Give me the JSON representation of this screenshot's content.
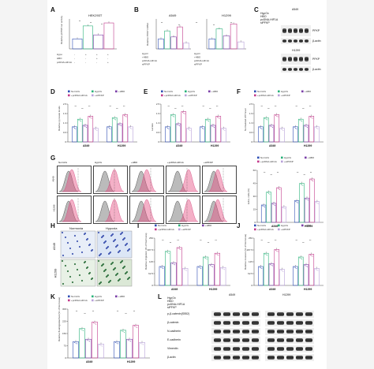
{
  "panels": {
    "A": {
      "label": "A",
      "title": "HEK293T",
      "ylabel": "Relative pFPKP-luc activity",
      "rows": [
        [
          "Hypo",
          "-",
          "+",
          "+",
          "+"
        ],
        [
          "HBO",
          "-",
          "-",
          "+",
          "-"
        ],
        [
          "pcDNA-HIF1A",
          "-",
          "-",
          "-",
          "+"
        ]
      ],
      "sig": [
        "**",
        "**",
        "**"
      ]
    },
    "B": {
      "label": "B",
      "title_left": "A549",
      "title_right": "H1299",
      "ylabel": "Relative PFKP mRNA",
      "rows": [
        "HypO",
        "+HBO",
        "pcDNA-HIF1A",
        "siPFKP"
      ],
      "sig": [
        "**",
        "**",
        "**",
        "**",
        "**"
      ]
    },
    "C": {
      "label": "C",
      "cell_a": "A549",
      "cell_b": "H1299",
      "rows": [
        "HypOx",
        "HBO",
        "pcDNA-HIF1A",
        "siPFKP"
      ],
      "bands": [
        "PFKP",
        "β-actin",
        "PFKP",
        "β-actin"
      ]
    },
    "D": {
      "label": "D",
      "ylabel": "Relative pyruvate levels",
      "groups": [
        "A549",
        "H1299"
      ]
    },
    "E": {
      "label": "E",
      "ylabel": "Lactate",
      "groups": [
        "A549",
        "H1299"
      ]
    },
    "F": {
      "label": "F",
      "ylabel": "Normalized ATP level",
      "groups": [
        "A549",
        "H1299"
      ]
    },
    "G": {
      "label": "G",
      "columns": [
        "NormOx",
        "HypOx",
        "+HBO",
        "+pcDNA-HIF1A",
        "+siPFKP"
      ],
      "rows": [
        "A549",
        "H1299"
      ],
      "bar_ylabel": "EdU+ cells (%)",
      "groups": [
        "A549",
        "H1299"
      ]
    },
    "H": {
      "label": "H",
      "columns": [
        "Normoxia",
        "Hypoxia"
      ],
      "rows": [
        "A549",
        "H1299"
      ]
    },
    "I": {
      "label": "I",
      "ylabel": "Relative migration (% of Normoxia)",
      "groups": [
        "A549",
        "H1299"
      ]
    },
    "J": {
      "label": "J",
      "ylabel": "Relative invasion (% of Normoxia)",
      "groups": [
        "A549",
        "H1299"
      ]
    },
    "K": {
      "label": "K",
      "ylabel": "Relative floating/attached (% of Normoxia)",
      "groups": [
        "A549",
        "H1299"
      ]
    },
    "L": {
      "label": "L",
      "cell_a": "A549",
      "cell_b": "H1299",
      "rows": [
        "HypOx",
        "HBO",
        "pcDNA-HIF1A",
        "siPFKP"
      ],
      "bands": [
        "p-β-catenin(S552)",
        "β-catenin",
        "N-cadherin",
        "E-cadherin",
        "Vimentin",
        "β-actin"
      ]
    }
  },
  "legend": {
    "items": [
      "NormOx",
      "HypOx",
      "+HBO",
      "+pcDNA-HIF1A",
      "+siPFKP"
    ],
    "colors": [
      "#2f4fb5",
      "#29b27a",
      "#7b3fa8",
      "#c23a8b",
      "#b8a1d9"
    ]
  },
  "chart_data": [
    {
      "type": "bar",
      "panel": "D",
      "categories": [
        "A549",
        "H1299"
      ],
      "series": [
        {
          "name": "NormOx",
          "values": [
            1.0,
            1.0
          ]
        },
        {
          "name": "HypOx",
          "values": [
            1.5,
            1.6
          ]
        },
        {
          "name": "+HBO",
          "values": [
            1.1,
            1.2
          ]
        },
        {
          "name": "+pcDNA-HIF1A",
          "values": [
            1.7,
            1.8
          ]
        },
        {
          "name": "+siPFKP",
          "values": [
            0.9,
            1.0
          ]
        }
      ],
      "ylim": [
        0,
        2.5
      ]
    },
    {
      "type": "bar",
      "panel": "E",
      "categories": [
        "A549",
        "H1299"
      ],
      "series": [
        {
          "name": "NormOx",
          "values": [
            1.0,
            1.0
          ]
        },
        {
          "name": "HypOx",
          "values": [
            1.8,
            1.5
          ]
        },
        {
          "name": "+HBO",
          "values": [
            1.2,
            1.1
          ]
        },
        {
          "name": "+pcDNA-HIF1A",
          "values": [
            2.0,
            1.7
          ]
        },
        {
          "name": "+siPFKP",
          "values": [
            0.9,
            0.9
          ]
        }
      ],
      "ylim": [
        0,
        2.5
      ]
    },
    {
      "type": "bar",
      "panel": "F",
      "categories": [
        "A549",
        "H1299"
      ],
      "series": [
        {
          "name": "NormOx",
          "values": [
            1.0,
            1.0
          ]
        },
        {
          "name": "HypOx",
          "values": [
            1.6,
            1.5
          ]
        },
        {
          "name": "+HBO",
          "values": [
            1.1,
            1.1
          ]
        },
        {
          "name": "+pcDNA-HIF1A",
          "values": [
            1.8,
            1.7
          ]
        },
        {
          "name": "+siPFKP",
          "values": [
            0.9,
            1.0
          ]
        }
      ],
      "ylim": [
        0,
        2.5
      ]
    },
    {
      "type": "bar",
      "panel": "G",
      "categories": [
        "A549",
        "H1299"
      ],
      "series": [
        {
          "name": "NormOx",
          "values": [
            20,
            25
          ]
        },
        {
          "name": "HypOx",
          "values": [
            35,
            45
          ]
        },
        {
          "name": "+HBO",
          "values": [
            22,
            28
          ]
        },
        {
          "name": "+pcDNA-HIF1A",
          "values": [
            40,
            50
          ]
        },
        {
          "name": "+siPFKP",
          "values": [
            18,
            24
          ]
        }
      ],
      "ylim": [
        0,
        60
      ]
    },
    {
      "type": "bar",
      "panel": "I",
      "categories": [
        "A549",
        "H1299"
      ],
      "series": [
        {
          "name": "NormOx",
          "values": [
            100,
            100
          ]
        },
        {
          "name": "HypOx",
          "values": [
            180,
            150
          ]
        },
        {
          "name": "+HBO",
          "values": [
            120,
            110
          ]
        },
        {
          "name": "+pcDNA-HIF1A",
          "values": [
            200,
            170
          ]
        },
        {
          "name": "+siPFKP",
          "values": [
            90,
            95
          ]
        }
      ],
      "ylim": [
        0,
        250
      ]
    },
    {
      "type": "bar",
      "panel": "J",
      "categories": [
        "A549",
        "H1299"
      ],
      "series": [
        {
          "name": "NormOx",
          "values": [
            100,
            100
          ]
        },
        {
          "name": "HypOx",
          "values": [
            170,
            150
          ]
        },
        {
          "name": "+HBO",
          "values": [
            115,
            110
          ]
        },
        {
          "name": "+pcDNA-HIF1A",
          "values": [
            190,
            165
          ]
        },
        {
          "name": "+siPFKP",
          "values": [
            85,
            90
          ]
        }
      ],
      "ylim": [
        0,
        250
      ]
    },
    {
      "type": "bar",
      "panel": "K",
      "categories": [
        "A549",
        "H1299"
      ],
      "series": [
        {
          "name": "NormOx",
          "values": [
            100,
            100
          ]
        },
        {
          "name": "HypOx",
          "values": [
            180,
            170
          ]
        },
        {
          "name": "+HBO",
          "values": [
            115,
            115
          ]
        },
        {
          "name": "+pcDNA-HIF1A",
          "values": [
            220,
            200
          ]
        },
        {
          "name": "+siPFKP",
          "values": [
            85,
            95
          ]
        }
      ],
      "ylim": [
        0,
        300
      ]
    },
    {
      "type": "bar",
      "panel": "A",
      "categories": [
        "1",
        "2",
        "3",
        "4"
      ],
      "series": [
        {
          "name": "",
          "values": [
            1.0,
            2.3,
            1.4,
            2.6
          ]
        }
      ],
      "ylim": [
        0,
        3
      ]
    },
    {
      "type": "bar",
      "panel": "B-A549",
      "categories": [
        "1",
        "2",
        "3",
        "4",
        "5"
      ],
      "series": [
        {
          "name": "A549",
          "values": [
            1.0,
            1.8,
            1.2,
            2.2,
            0.6
          ]
        }
      ],
      "ylim": [
        0,
        3
      ]
    },
    {
      "type": "bar",
      "panel": "B-H1299",
      "categories": [
        "1",
        "2",
        "3",
        "4",
        "5"
      ],
      "series": [
        {
          "name": "H1299",
          "values": [
            1.0,
            2.0,
            1.3,
            2.5,
            0.7
          ]
        }
      ],
      "ylim": [
        0,
        3
      ]
    }
  ]
}
